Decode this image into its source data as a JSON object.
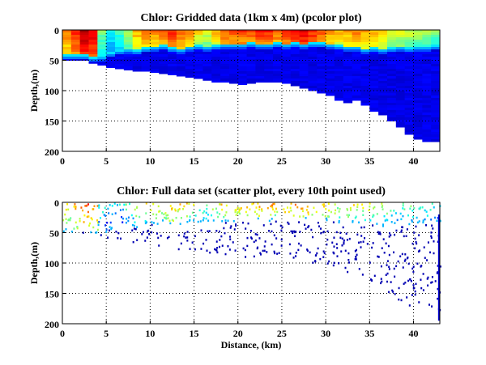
{
  "chart_data": [
    {
      "type": "heatmap",
      "title": "Chlor: Gridded data (1km x 4m) (pcolor plot)",
      "xlabel": "",
      "ylabel": "Depth,(m)",
      "xlim": [
        0,
        43
      ],
      "ylim": [
        200,
        0
      ],
      "xticks": [
        "0",
        "5",
        "10",
        "15",
        "20",
        "25",
        "30",
        "35",
        "40"
      ],
      "yticks": [
        "0",
        "50",
        "100",
        "150",
        "200"
      ],
      "grid": true,
      "colormap": "jet",
      "cell_width_km": 1,
      "cell_height_m": 4,
      "bottom_depth_m": [
        50,
        50,
        50,
        55,
        58,
        62,
        64,
        66,
        68,
        68,
        70,
        72,
        74,
        76,
        78,
        80,
        83,
        86,
        86,
        88,
        90,
        88,
        86,
        86,
        86,
        88,
        92,
        96,
        100,
        104,
        108,
        116,
        120,
        116,
        124,
        134,
        140,
        150,
        160,
        172,
        180,
        184,
        184
      ],
      "surface_mix_depth_m": [
        48,
        48,
        48,
        52,
        50,
        44,
        40,
        38,
        40,
        36,
        34,
        32,
        36,
        38,
        34,
        32,
        34,
        32,
        30,
        30,
        30,
        28,
        30,
        30,
        28,
        30,
        28,
        30,
        28,
        28,
        30,
        32,
        34,
        34,
        38,
        36,
        38,
        36,
        34,
        36,
        34,
        34,
        32
      ],
      "surface_intensity": [
        0.75,
        0.85,
        0.95,
        0.9,
        0.5,
        0.4,
        0.45,
        0.55,
        0.7,
        0.75,
        0.75,
        0.78,
        0.85,
        0.78,
        0.75,
        0.65,
        0.6,
        0.7,
        0.8,
        0.8,
        0.82,
        0.82,
        0.85,
        0.85,
        0.8,
        0.85,
        0.88,
        0.9,
        0.85,
        0.82,
        0.75,
        0.7,
        0.72,
        0.75,
        0.72,
        0.7,
        0.65,
        0.6,
        0.6,
        0.58,
        0.55,
        0.55,
        0.5
      ]
    },
    {
      "type": "scatter",
      "title": "Chlor: Full data set (scatter plot, every 10th point used)",
      "xlabel": "Distance, (km)",
      "ylabel": "Depth,(m)",
      "xlim": [
        0,
        43
      ],
      "ylim": [
        200,
        0
      ],
      "xticks": [
        "0",
        "5",
        "10",
        "15",
        "20",
        "25",
        "30",
        "35",
        "40"
      ],
      "yticks": [
        "0",
        "50",
        "100",
        "150",
        "200"
      ],
      "grid": true,
      "colormap": "jet"
    }
  ]
}
